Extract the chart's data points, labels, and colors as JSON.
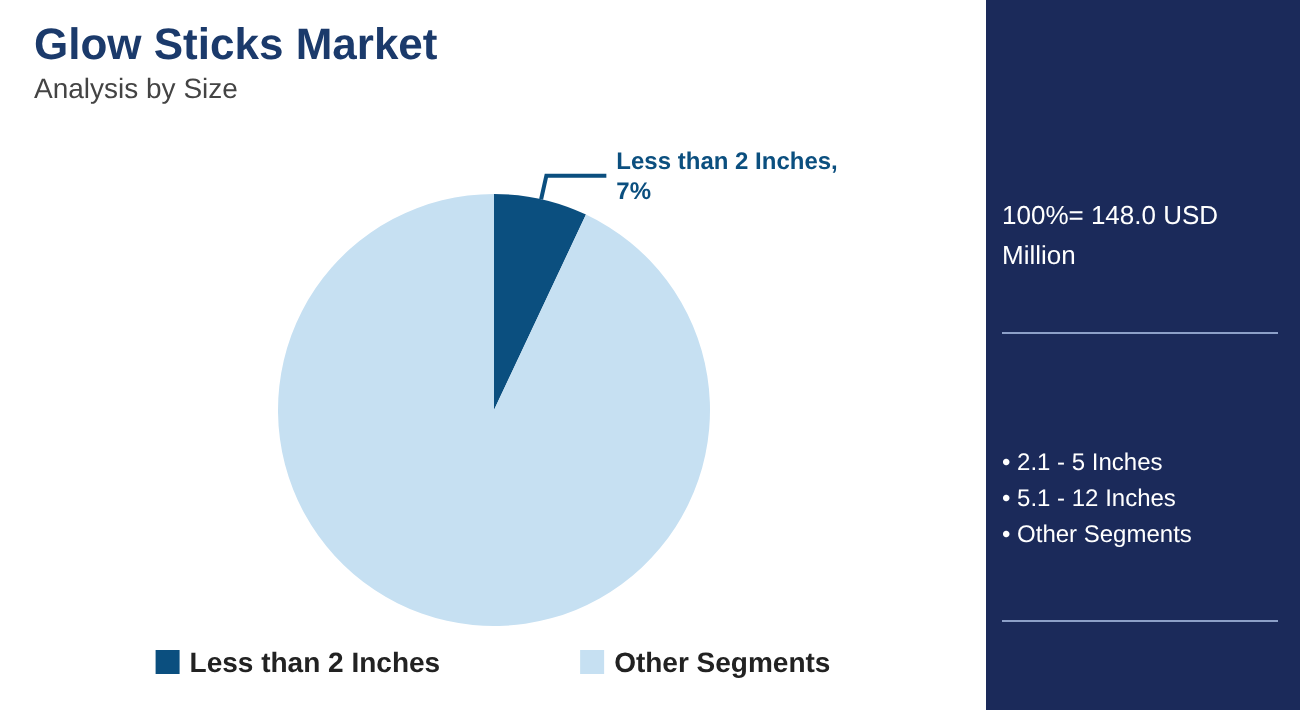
{
  "chart_data": {
    "type": "pie",
    "title": "Glow Sticks Market",
    "subtitle": "Analysis by Size",
    "categories": [
      "Less than 2 Inches",
      "Other Segments"
    ],
    "values": [
      7,
      93
    ],
    "colors": [
      "#0b4f7f",
      "#c6e0f2"
    ],
    "value_labels": [
      "Less than 2 Inches,\n7%",
      null
    ],
    "legend": "bottom",
    "annotations": [
      "100%= 148.0 USD Million",
      "• 2.1 - 5 Inches",
      "• 5.1 - 12 Inches",
      "• Other Segments"
    ]
  }
}
